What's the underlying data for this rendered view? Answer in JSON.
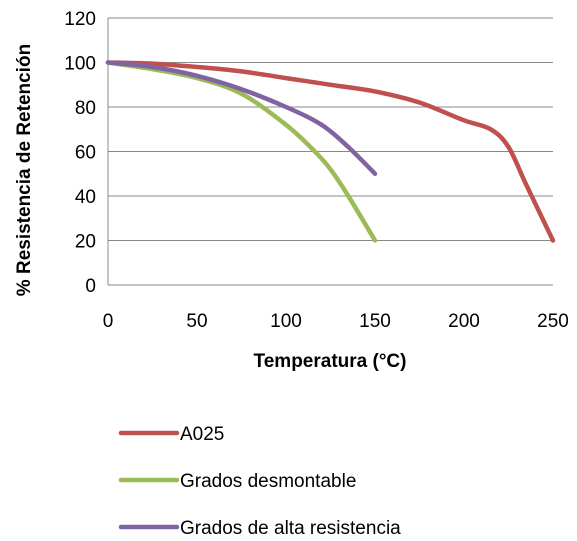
{
  "chart_data": {
    "type": "line",
    "title": "",
    "xlabel": "Temperatura (°C)",
    "ylabel": "% Resistencia de Retención",
    "xlim": [
      0,
      250
    ],
    "ylim": [
      0,
      120
    ],
    "x_ticks": [
      0,
      50,
      100,
      150,
      200,
      250
    ],
    "y_ticks": [
      0,
      20,
      40,
      60,
      80,
      100,
      120
    ],
    "x_tick_labels": [
      "0",
      "50",
      "100",
      "150",
      "200",
      "250"
    ],
    "y_tick_labels": [
      "0",
      "20",
      "40",
      "60",
      "80",
      "100",
      "120"
    ],
    "grid": "horizontal",
    "legend_position": "bottom",
    "series": [
      {
        "name": "A025",
        "color": "#c0504d",
        "points": [
          [
            0,
            100
          ],
          [
            25,
            99.5
          ],
          [
            50,
            98
          ],
          [
            75,
            96
          ],
          [
            100,
            93
          ],
          [
            125,
            90
          ],
          [
            150,
            87
          ],
          [
            175,
            82
          ],
          [
            200,
            74
          ],
          [
            215,
            70
          ],
          [
            225,
            62
          ],
          [
            235,
            45
          ],
          [
            250,
            20
          ]
        ]
      },
      {
        "name": "Grados desmontable",
        "color": "#9bbb59",
        "points": [
          [
            0,
            100
          ],
          [
            25,
            97
          ],
          [
            50,
            93
          ],
          [
            75,
            86
          ],
          [
            100,
            72
          ],
          [
            115,
            61
          ],
          [
            125,
            52
          ],
          [
            135,
            40
          ],
          [
            150,
            20
          ]
        ]
      },
      {
        "name": "Grados de alta resistencia",
        "color": "#8064a2",
        "points": [
          [
            0,
            100
          ],
          [
            25,
            98
          ],
          [
            50,
            94
          ],
          [
            75,
            88
          ],
          [
            100,
            80
          ],
          [
            120,
            72
          ],
          [
            135,
            62
          ],
          [
            150,
            50
          ]
        ]
      }
    ]
  }
}
